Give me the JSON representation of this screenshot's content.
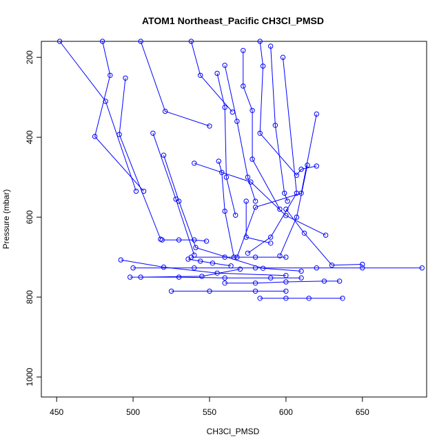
{
  "chart_data": {
    "type": "scatter",
    "title": "ATOM1 Northeast_Pacific CH3Cl_PMSD",
    "xlabel": "CH3Cl_PMSD",
    "ylabel": "Pressure (mbar)",
    "xlim": [
      440,
      692
    ],
    "ylim": [
      1050,
      160
    ],
    "y_inverted": true,
    "x_ticks": [
      450,
      500,
      550,
      600,
      650
    ],
    "y_ticks": [
      200,
      400,
      600,
      800,
      1000
    ],
    "grid": false,
    "line_color": "#0000ff",
    "marker": "open-circle",
    "series": [
      {
        "points": [
          [
            452,
            160
          ],
          [
            482,
            310
          ],
          [
            502,
            535
          ]
        ]
      },
      {
        "points": [
          [
            480,
            160
          ],
          [
            485,
            245
          ],
          [
            475,
            398
          ],
          [
            507,
            535
          ]
        ]
      },
      {
        "points": [
          [
            505,
            160
          ],
          [
            521,
            335
          ],
          [
            550,
            372
          ]
        ]
      },
      {
        "points": [
          [
            495,
            252
          ],
          [
            491,
            393
          ],
          [
            518,
            655
          ]
        ]
      },
      {
        "points": [
          [
            538,
            160
          ],
          [
            544,
            245
          ],
          [
            565,
            337
          ]
        ]
      },
      {
        "points": [
          [
            520,
            445
          ],
          [
            530,
            560
          ],
          [
            541,
            676
          ],
          [
            585,
            728
          ],
          [
            610,
            735
          ]
        ]
      },
      {
        "points": [
          [
            513,
            390
          ],
          [
            528,
            555
          ],
          [
            540,
            695
          ]
        ]
      },
      {
        "points": [
          [
            492,
            707
          ],
          [
            520,
            725
          ],
          [
            555,
            740
          ],
          [
            600,
            746
          ]
        ]
      },
      {
        "points": [
          [
            505,
            750
          ],
          [
            545,
            748
          ],
          [
            570,
            730
          ]
        ]
      },
      {
        "points": [
          [
            540,
            465
          ],
          [
            577,
            512
          ],
          [
            600,
            596
          ],
          [
            626,
            645
          ]
        ]
      },
      {
        "points": [
          [
            555,
            240
          ],
          [
            560,
            325
          ],
          [
            561,
            500
          ],
          [
            567,
            595
          ]
        ]
      },
      {
        "points": [
          [
            556,
            460
          ],
          [
            558,
            488
          ],
          [
            560,
            585
          ],
          [
            566,
            700
          ]
        ]
      },
      {
        "points": [
          [
            572,
            183
          ],
          [
            572,
            272
          ],
          [
            578,
            333
          ],
          [
            578,
            455
          ],
          [
            596,
            580
          ]
        ]
      },
      {
        "points": [
          [
            583,
            160
          ],
          [
            585,
            222
          ],
          [
            583,
            390
          ],
          [
            607,
            495
          ],
          [
            610,
            480
          ],
          [
            620,
            472
          ]
        ]
      },
      {
        "points": [
          [
            590,
            172
          ],
          [
            593,
            370
          ],
          [
            599,
            540
          ],
          [
            601,
            560
          ]
        ]
      },
      {
        "points": [
          [
            614,
            470
          ],
          [
            607,
            600
          ],
          [
            596,
            697
          ]
        ]
      },
      {
        "points": [
          [
            620,
            342
          ],
          [
            610,
            540
          ],
          [
            580,
            575
          ],
          [
            568,
            700
          ]
        ]
      },
      {
        "points": [
          [
            574,
            560
          ],
          [
            574,
            650
          ],
          [
            590,
            665
          ]
        ]
      },
      {
        "points": [
          [
            598,
            200
          ],
          [
            607,
            540
          ],
          [
            590,
            650
          ],
          [
            575,
            690
          ]
        ]
      },
      {
        "points": [
          [
            560,
            220
          ],
          [
            568,
            360
          ],
          [
            575,
            500
          ],
          [
            580,
            560
          ]
        ]
      },
      {
        "points": [
          [
            519,
            657
          ],
          [
            530,
            657
          ],
          [
            540,
            657
          ],
          [
            548,
            660
          ]
        ]
      },
      {
        "points": [
          [
            538,
            700
          ],
          [
            560,
            700
          ],
          [
            580,
            700
          ],
          [
            600,
            700
          ]
        ]
      },
      {
        "points": [
          [
            500,
            727
          ],
          [
            540,
            727
          ],
          [
            580,
            727
          ],
          [
            620,
            727
          ],
          [
            650,
            727
          ],
          [
            689,
            727
          ]
        ]
      },
      {
        "points": [
          [
            498,
            750
          ],
          [
            530,
            750
          ],
          [
            560,
            752
          ],
          [
            590,
            752
          ],
          [
            610,
            752
          ]
        ]
      },
      {
        "points": [
          [
            525,
            785
          ],
          [
            550,
            785
          ],
          [
            580,
            785
          ],
          [
            600,
            785
          ]
        ]
      },
      {
        "points": [
          [
            583,
            803
          ],
          [
            600,
            803
          ],
          [
            615,
            803
          ],
          [
            637,
            803
          ]
        ]
      },
      {
        "points": [
          [
            560,
            765
          ],
          [
            580,
            765
          ],
          [
            600,
            762
          ],
          [
            625,
            760
          ],
          [
            635,
            760
          ]
        ]
      },
      {
        "points": [
          [
            600,
            580
          ],
          [
            612,
            640
          ],
          [
            630,
            720
          ],
          [
            650,
            718
          ]
        ]
      },
      {
        "points": [
          [
            536,
            705
          ],
          [
            544,
            710
          ],
          [
            552,
            715
          ],
          [
            564,
            722
          ]
        ]
      }
    ]
  }
}
